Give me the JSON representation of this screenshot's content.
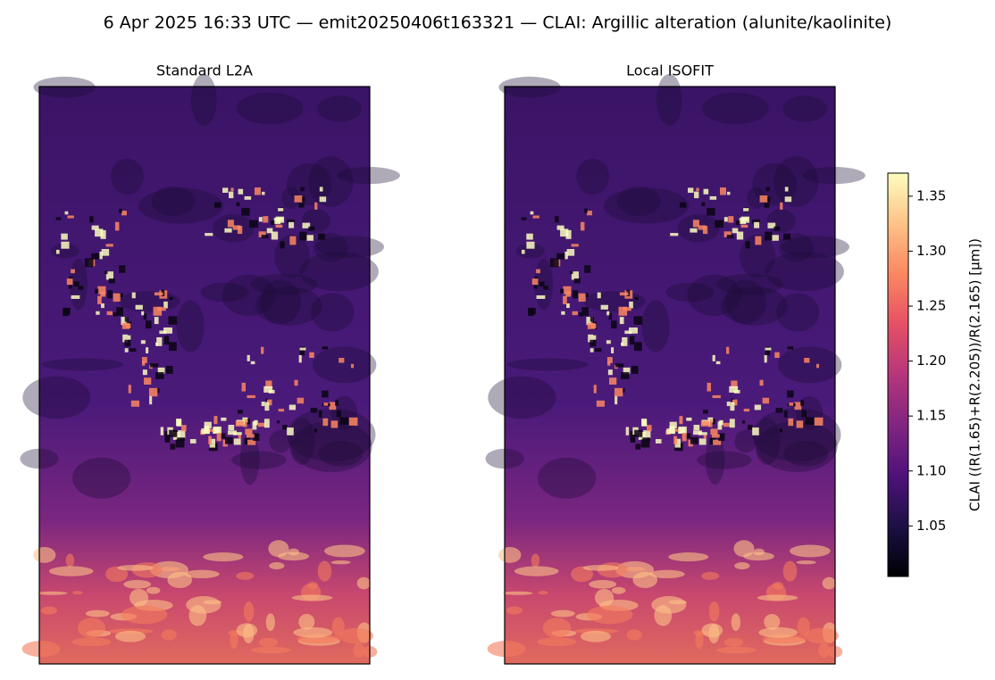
{
  "chart_data": {
    "type": "image",
    "title": "6 Apr 2025 16:33 UTC — emit20250406t163321 — CLAI: Argillic alteration (alunite/kaolinite)",
    "panels": [
      {
        "title": "Standard L2A"
      },
      {
        "title": "Local ISOFIT"
      }
    ],
    "colormap": "magma",
    "colorbar": {
      "label": "CLAI  ((R(1.65)+R(2.205))/R(2.165)  [µm])",
      "lim": [
        1.004,
        1.371
      ],
      "ticks": [
        1.05,
        {
          "value": 1.1,
          "label": "1.10"
        },
        1.15,
        {
          "value": 1.2,
          "label": "1.20"
        },
        1.25,
        {
          "value": 1.3,
          "label": "1.30"
        },
        1.35
      ]
    }
  }
}
